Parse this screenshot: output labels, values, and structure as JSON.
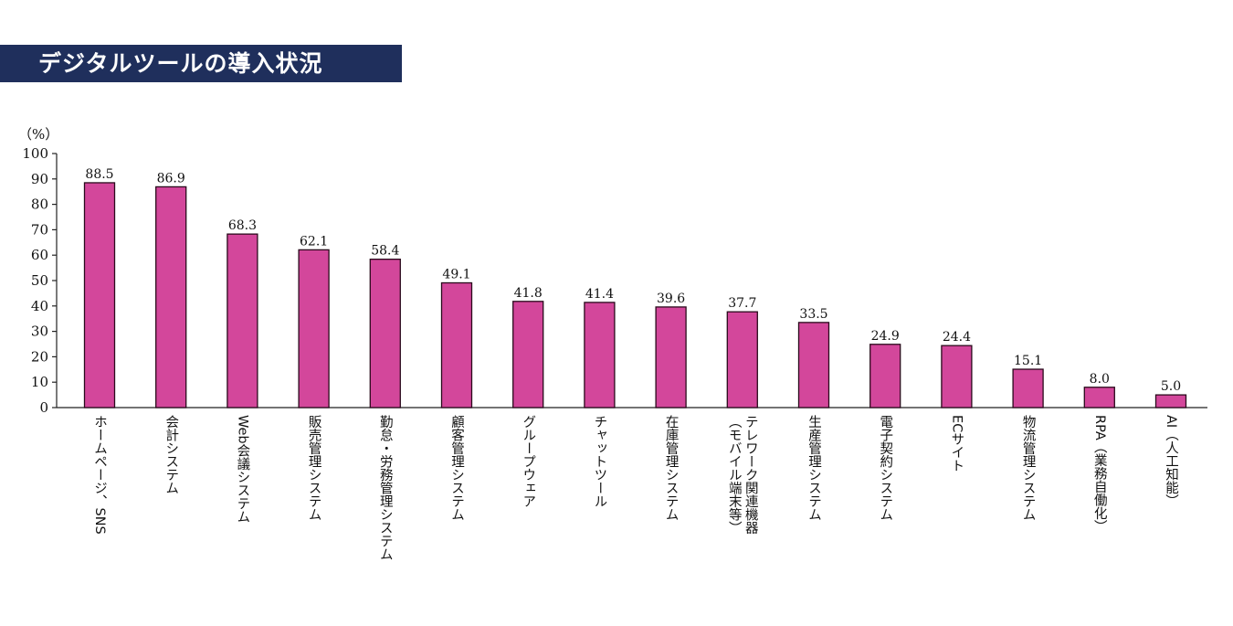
{
  "title": "デジタルツールの導入状況",
  "colors": {
    "banner": "#1f2f5c",
    "bar_fill": "#d3479b",
    "bar_stroke": "#2a0a1c",
    "axis": "#222222"
  },
  "chart_data": {
    "type": "bar",
    "unit_label": "（%）",
    "ylim": [
      0,
      100
    ],
    "yticks": [
      "0",
      "10",
      "20",
      "30",
      "40",
      "50",
      "60",
      "70",
      "80",
      "90",
      "100"
    ],
    "grid": false,
    "categories": [
      "ホームページ、SNS",
      "会計システム",
      "Web会議システム",
      "販売管理システム",
      "勤怠・労務管理システム",
      "顧客管理システム",
      "グループウェア",
      "チャットツール",
      "在庫管理システム",
      "テレワーク関連機器（モバイル端末等）",
      "生産管理システム",
      "電子契約システム",
      "ECサイト",
      "物流管理システム",
      "RPA（業務自働化）",
      "AI（人工知能）"
    ],
    "category_lines": [
      [
        "ホームページ、SNS"
      ],
      [
        "会計システム"
      ],
      [
        "Web会議システム"
      ],
      [
        "販売管理システム"
      ],
      [
        "勤怠・労務管理システム"
      ],
      [
        "顧客管理システム"
      ],
      [
        "グループウェア"
      ],
      [
        "チャットツール"
      ],
      [
        "在庫管理システム"
      ],
      [
        "（モバイル端末等）",
        "テレワーク関連機器"
      ],
      [
        "生産管理システム"
      ],
      [
        "電子契約システム"
      ],
      [
        "ECサイト"
      ],
      [
        "物流管理システム"
      ],
      [
        "RPA（業務自働化）"
      ],
      [
        "AI（人工知能）"
      ]
    ],
    "values": [
      88.5,
      86.9,
      68.3,
      62.1,
      58.4,
      49.1,
      41.8,
      41.4,
      39.6,
      37.7,
      33.5,
      24.9,
      24.4,
      15.1,
      8.0,
      5.0
    ],
    "value_labels": [
      "88.5",
      "86.9",
      "68.3",
      "62.1",
      "58.4",
      "49.1",
      "41.8",
      "41.4",
      "39.6",
      "37.7",
      "33.5",
      "24.9",
      "24.4",
      "15.1",
      "8.0",
      "5.0"
    ]
  }
}
